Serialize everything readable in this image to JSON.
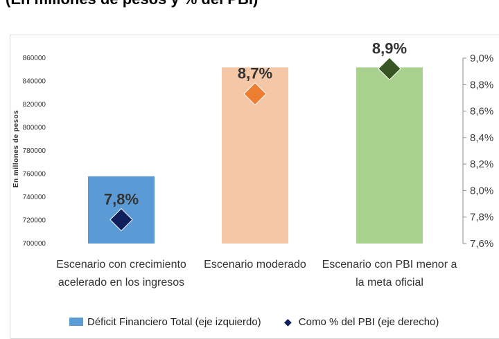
{
  "page": {
    "title": "(En millones de pesos y % del PBI)"
  },
  "chart_data": {
    "type": "bar",
    "categories": [
      [
        "Escenario con crecimiento",
        "acelerado en los ingresos"
      ],
      [
        "Escenario moderado"
      ],
      [
        "Escenario con PBI menor a",
        "la meta oficial"
      ]
    ],
    "ylabel": "En millones de pesos",
    "ylim": [
      700000,
      860000
    ],
    "yticks": [
      "860000",
      "840000",
      "820000",
      "800000",
      "780000",
      "760000",
      "740000",
      "720000",
      "700000"
    ],
    "y2lim": [
      7.6,
      9.0
    ],
    "y2ticks": [
      "9,0%",
      "8,8%",
      "8,6%",
      "8,4%",
      "8,2%",
      "8,0%",
      "7,8%",
      "7,6%"
    ],
    "series": [
      {
        "name": "Déficit Financiero Total (eje izquierdo)",
        "kind": "bar",
        "axis": "left",
        "values": [
          758000,
          852000,
          852000
        ],
        "colors": [
          "#5b9bd5",
          "#f4c7a6",
          "#a9d18e"
        ],
        "legend_color": "#5b9bd5"
      },
      {
        "name": "Como % del PBI (eje derecho)",
        "kind": "marker",
        "axis": "right",
        "values": [
          7.78,
          8.73,
          8.92
        ],
        "labels": [
          "7,8%",
          "8,7%",
          "8,9%"
        ],
        "colors": [
          "#0e1f5b",
          "#ed7d31",
          "#375623"
        ],
        "legend_color": "#0e1f5b"
      }
    ],
    "grid": false,
    "legend_position": "bottom"
  }
}
